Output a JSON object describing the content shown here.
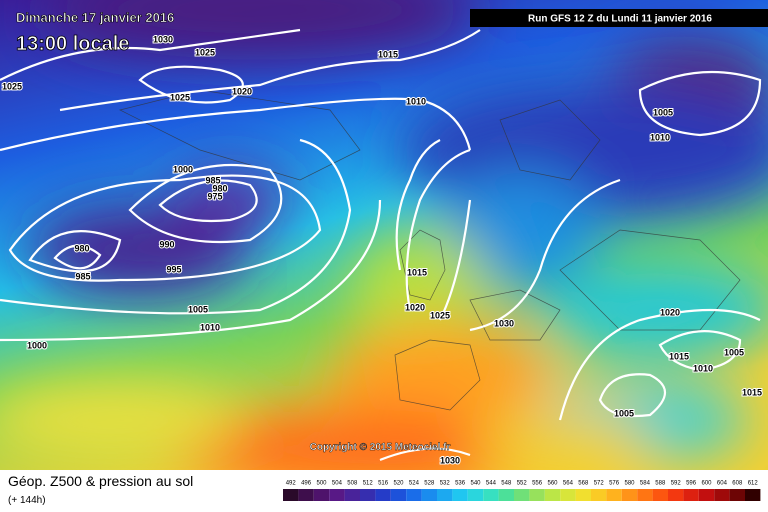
{
  "header": {
    "date": "Dimanche 17 janvier 2016",
    "time": "13:00 locale",
    "run": "Run GFS 12 Z du Lundi 11 janvier 2016"
  },
  "copyright": "Copyright © 2015 Meteociel.fr",
  "footer": {
    "title": "Géop. Z500 & pression au sol",
    "lead": "(+ 144h)"
  },
  "scale": {
    "labels": [
      "492",
      "496",
      "500",
      "504",
      "508",
      "512",
      "516",
      "520",
      "524",
      "528",
      "532",
      "536",
      "540",
      "544",
      "548",
      "552",
      "556",
      "560",
      "564",
      "568",
      "572",
      "576",
      "580",
      "584",
      "588",
      "592",
      "596",
      "600",
      "604",
      "608",
      "612"
    ]
  },
  "isobars": {
    "labels": [
      "1030",
      "1025",
      "1025",
      "1025",
      "1020",
      "1015",
      "1010",
      "1005",
      "1010",
      "1000",
      "985",
      "980",
      "975",
      "980",
      "985",
      "990",
      "995",
      "1015",
      "1020",
      "1025",
      "1030",
      "1020",
      "1005",
      "1010",
      "1000",
      "1015",
      "1010",
      "1005",
      "1015",
      "1005",
      "1030"
    ]
  }
}
